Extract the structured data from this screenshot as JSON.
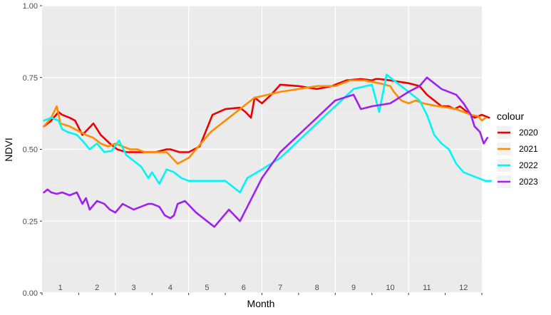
{
  "chart_data": {
    "type": "line",
    "xlabel": "Month",
    "ylabel": "NDVI",
    "ylim": [
      0,
      1
    ],
    "yticks": [
      "0.00",
      "0.25",
      "0.50",
      "0.75",
      "1.00"
    ],
    "xlim": [
      0,
      12
    ],
    "month_labels": [
      "1",
      "2",
      "3",
      "4",
      "5",
      "6",
      "7",
      "8",
      "9",
      "10",
      "11",
      "12"
    ],
    "grid": true,
    "background": "#EBEBEB",
    "legend": {
      "title": "colour",
      "position": "right"
    },
    "series": [
      {
        "name": "2020",
        "color": "#EE0000",
        "x": [
          0.05,
          0.25,
          0.45,
          0.55,
          0.75,
          0.9,
          1.1,
          1.4,
          1.6,
          1.85,
          2.05,
          2.3,
          2.7,
          3.1,
          3.4,
          3.5,
          3.75,
          4.0,
          4.3,
          4.65,
          5.0,
          5.4,
          5.55,
          5.7,
          5.8,
          6.0,
          6.25,
          6.5,
          7.0,
          7.5,
          7.9,
          8.3,
          8.7,
          9.0,
          9.1,
          9.2,
          9.5,
          10.0,
          10.3,
          10.5,
          10.7,
          10.9,
          11.1,
          11.25,
          11.4,
          11.6,
          11.8,
          12.0,
          12.2
        ],
        "y": [
          0.58,
          0.6,
          0.63,
          0.62,
          0.61,
          0.6,
          0.55,
          0.59,
          0.55,
          0.52,
          0.5,
          0.49,
          0.49,
          0.49,
          0.5,
          0.5,
          0.49,
          0.49,
          0.51,
          0.62,
          0.64,
          0.645,
          0.63,
          0.61,
          0.68,
          0.66,
          0.69,
          0.725,
          0.72,
          0.71,
          0.72,
          0.74,
          0.745,
          0.74,
          0.745,
          0.745,
          0.74,
          0.73,
          0.72,
          0.69,
          0.67,
          0.65,
          0.65,
          0.64,
          0.65,
          0.63,
          0.61,
          0.62,
          0.61
        ]
      },
      {
        "name": "2021",
        "color": "#FF8C00",
        "x": [
          0.05,
          0.25,
          0.4,
          0.5,
          0.75,
          0.9,
          1.2,
          1.4,
          1.6,
          1.8,
          2.0,
          2.4,
          2.6,
          2.8,
          3.1,
          3.4,
          3.7,
          4.0,
          4.6,
          5.0,
          5.4,
          5.6,
          5.8,
          6.0,
          6.5,
          7.0,
          7.5,
          8.0,
          8.4,
          8.8,
          9.2,
          9.5,
          9.6,
          9.8,
          10.0,
          10.2,
          10.4,
          10.8,
          11.1,
          11.3,
          11.5,
          11.7,
          11.9,
          12.0,
          12.1
        ],
        "y": [
          0.58,
          0.61,
          0.65,
          0.59,
          0.58,
          0.57,
          0.55,
          0.54,
          0.52,
          0.51,
          0.52,
          0.5,
          0.5,
          0.49,
          0.49,
          0.49,
          0.45,
          0.47,
          0.56,
          0.6,
          0.64,
          0.66,
          0.68,
          0.685,
          0.7,
          0.71,
          0.72,
          0.72,
          0.74,
          0.74,
          0.73,
          0.72,
          0.7,
          0.67,
          0.66,
          0.67,
          0.66,
          0.65,
          0.645,
          0.64,
          0.63,
          0.62,
          0.615,
          0.6,
          0.61
        ]
      },
      {
        "name": "2022",
        "color": "#00F5F5",
        "x": [
          0.05,
          0.25,
          0.45,
          0.55,
          0.7,
          0.95,
          1.1,
          1.3,
          1.5,
          1.7,
          1.9,
          2.1,
          2.3,
          2.5,
          2.7,
          2.9,
          3.0,
          3.2,
          3.4,
          3.6,
          3.8,
          4.0,
          4.5,
          5.0,
          5.4,
          5.6,
          6.0,
          6.5,
          7.0,
          7.5,
          8.0,
          8.5,
          9.0,
          9.2,
          9.4,
          9.6,
          9.8,
          10.0,
          10.3,
          10.5,
          10.7,
          10.9,
          11.1,
          11.3,
          11.5,
          11.7,
          11.9,
          12.1,
          12.25
        ],
        "y": [
          0.6,
          0.61,
          0.6,
          0.57,
          0.56,
          0.55,
          0.53,
          0.5,
          0.52,
          0.49,
          0.495,
          0.53,
          0.48,
          0.46,
          0.44,
          0.4,
          0.42,
          0.38,
          0.43,
          0.42,
          0.4,
          0.39,
          0.39,
          0.39,
          0.35,
          0.4,
          0.43,
          0.47,
          0.53,
          0.59,
          0.65,
          0.71,
          0.725,
          0.63,
          0.76,
          0.74,
          0.72,
          0.7,
          0.67,
          0.62,
          0.55,
          0.52,
          0.5,
          0.45,
          0.42,
          0.41,
          0.4,
          0.39,
          0.39
        ]
      },
      {
        "name": "2023",
        "color": "#A020F0",
        "x": [
          0.05,
          0.15,
          0.25,
          0.4,
          0.55,
          0.75,
          0.95,
          1.1,
          1.2,
          1.3,
          1.5,
          1.7,
          1.85,
          2.0,
          2.2,
          2.35,
          2.5,
          2.7,
          2.9,
          3.0,
          3.2,
          3.35,
          3.5,
          3.6,
          3.7,
          3.9,
          4.2,
          4.7,
          5.1,
          5.4,
          6.0,
          6.5,
          7.0,
          7.5,
          8.0,
          8.5,
          8.7,
          9.0,
          9.5,
          10.0,
          10.3,
          10.5,
          10.7,
          10.9,
          11.1,
          11.3,
          11.5,
          11.7,
          11.8,
          11.95,
          12.05,
          12.15
        ],
        "y": [
          0.35,
          0.36,
          0.35,
          0.345,
          0.35,
          0.34,
          0.35,
          0.31,
          0.33,
          0.29,
          0.32,
          0.31,
          0.29,
          0.28,
          0.31,
          0.3,
          0.29,
          0.3,
          0.31,
          0.31,
          0.3,
          0.27,
          0.26,
          0.27,
          0.31,
          0.32,
          0.28,
          0.23,
          0.29,
          0.25,
          0.4,
          0.49,
          0.55,
          0.61,
          0.67,
          0.69,
          0.64,
          0.65,
          0.66,
          0.7,
          0.72,
          0.75,
          0.73,
          0.71,
          0.7,
          0.69,
          0.66,
          0.62,
          0.58,
          0.56,
          0.52,
          0.54
        ]
      }
    ]
  }
}
